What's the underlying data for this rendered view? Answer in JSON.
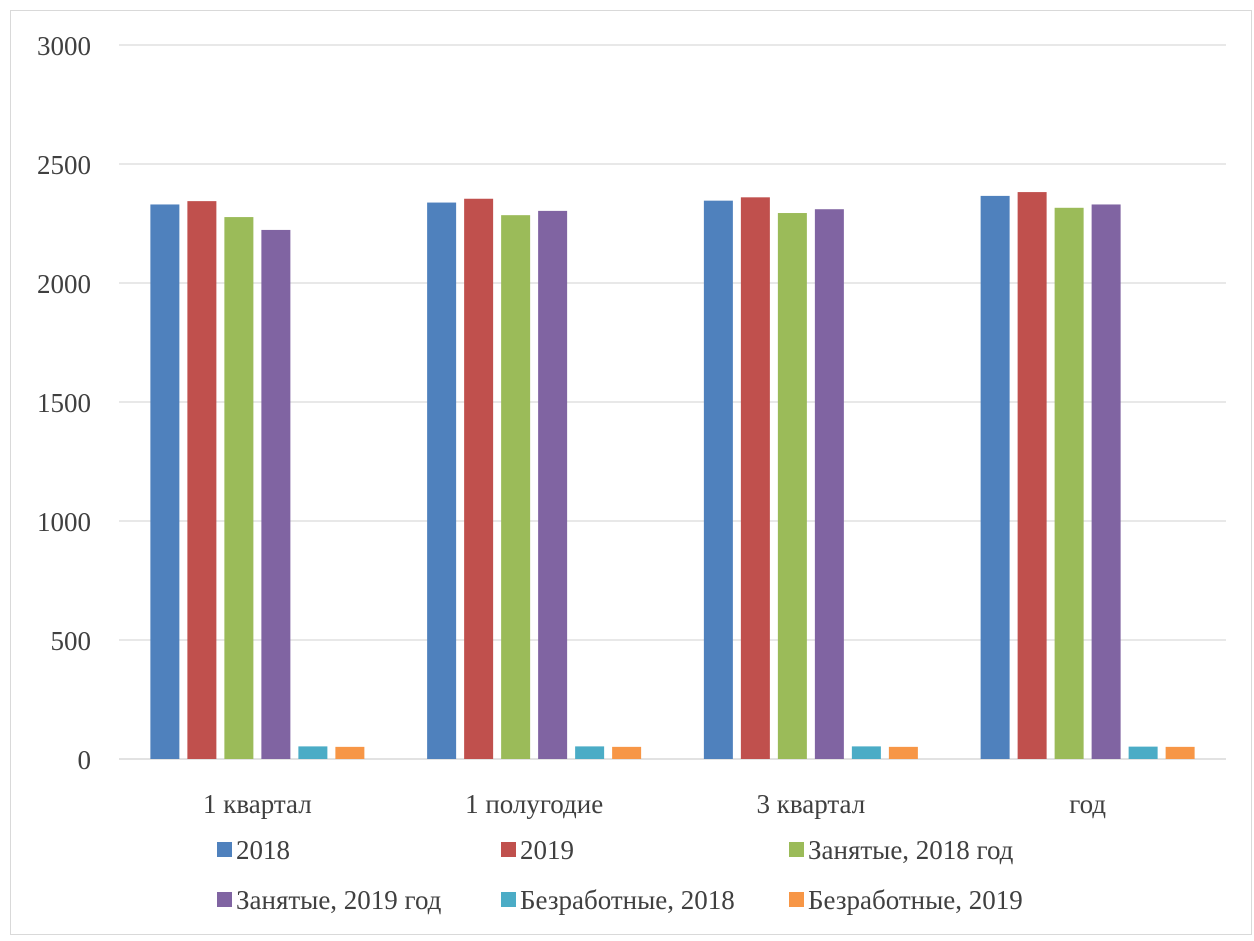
{
  "chart_data": {
    "type": "bar",
    "title": "",
    "xlabel": "",
    "ylabel": "",
    "categories": [
      "1 квартал",
      "1 полугодие",
      "3 квартал",
      "год"
    ],
    "ylim": [
      0,
      3000
    ],
    "yticks": [
      "0",
      "500",
      "1000",
      "1500",
      "2000",
      "2500",
      "3000"
    ],
    "grid": true,
    "legend_position": "bottom",
    "series": [
      {
        "name": "2018",
        "color": "#4f81bd",
        "values": [
          2330,
          2338,
          2346,
          2366
        ]
      },
      {
        "name": "2019",
        "color": "#c0504d",
        "values": [
          2344,
          2354,
          2360,
          2382
        ]
      },
      {
        "name": "Занятые, 2018 год",
        "color": "#9bbb59",
        "values": [
          2277,
          2285,
          2294,
          2316
        ]
      },
      {
        "name": "Занятые, 2019 год",
        "color": "#8064a2",
        "values": [
          2223,
          2303,
          2310,
          2330
        ]
      },
      {
        "name": "Безработные, 2018",
        "color": "#4bacc6",
        "values": [
          53,
          53,
          53,
          52
        ]
      },
      {
        "name": "Безработные, 2019",
        "color": "#f79646",
        "values": [
          51,
          51,
          51,
          51
        ]
      }
    ]
  }
}
